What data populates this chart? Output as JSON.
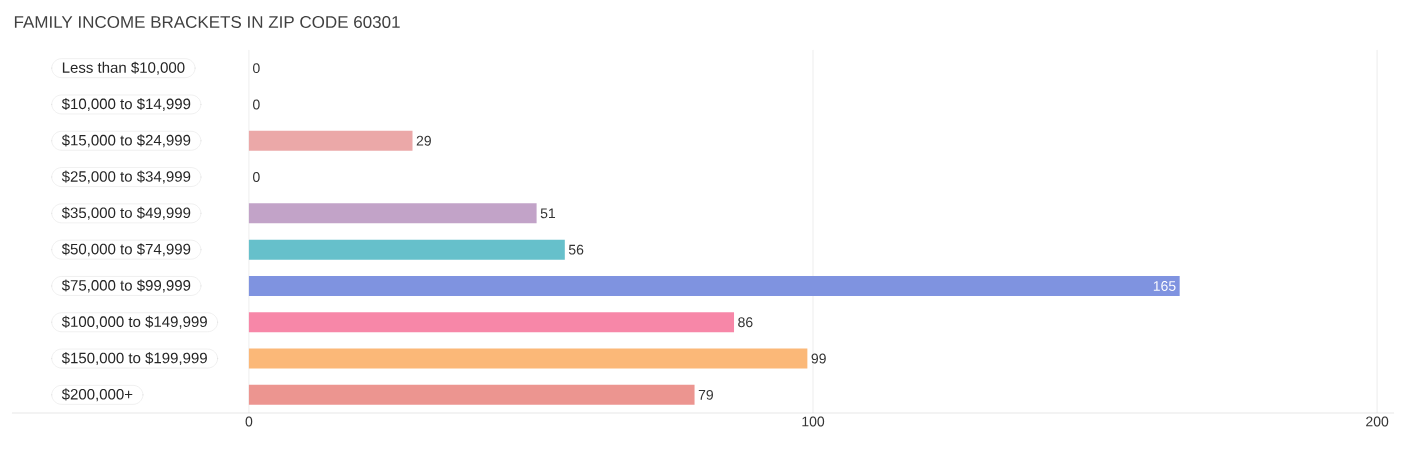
{
  "chart_data": {
    "type": "bar",
    "orientation": "horizontal",
    "title": "FAMILY INCOME BRACKETS IN ZIP CODE 60301",
    "categories": [
      "Less than $10,000",
      "$10,000 to $14,999",
      "$15,000 to $24,999",
      "$25,000 to $34,999",
      "$35,000 to $49,999",
      "$50,000 to $74,999",
      "$75,000 to $99,999",
      "$100,000 to $149,999",
      "$150,000 to $199,999",
      "$200,000+"
    ],
    "values": [
      0,
      0,
      29,
      0,
      51,
      56,
      165,
      86,
      99,
      79
    ],
    "colors": [
      "#f7a8c4",
      "#fbcb9d",
      "#eba8a8",
      "#a8c8ec",
      "#c2a3c8",
      "#66c0cb",
      "#7f93e0",
      "#f787a8",
      "#fbb878",
      "#ec9590"
    ],
    "xlim": [
      -42,
      203
    ],
    "xticks": [
      0,
      100,
      200
    ],
    "grid": "x",
    "data_labels": true
  }
}
